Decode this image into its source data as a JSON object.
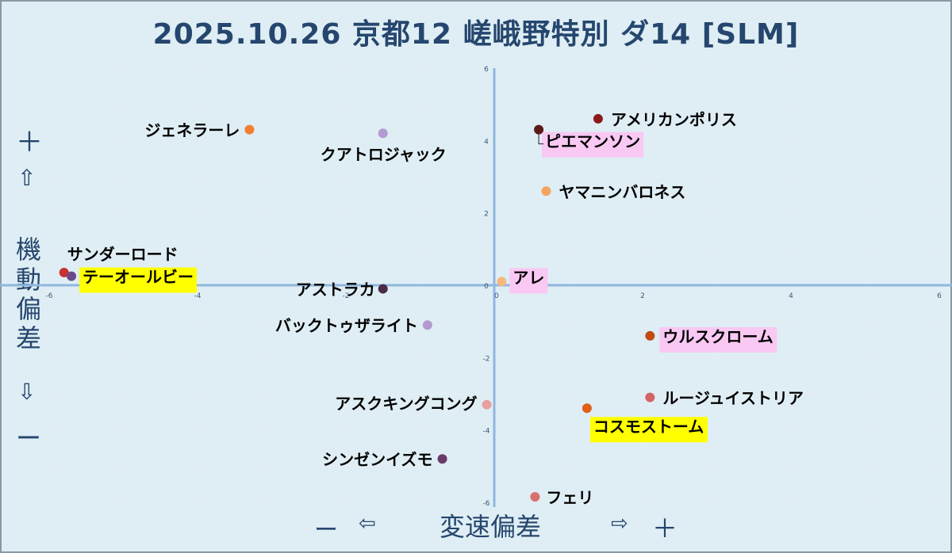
{
  "title": "2025.10.26 京都12 嵯峨野特別 ダ14 [SLM]",
  "y_axis_label": {
    "plus": "＋",
    "up_arrow": "⇧",
    "chars": [
      "機",
      "動",
      "偏",
      "差"
    ],
    "down_arrow": "⇩",
    "minus": "ー"
  },
  "x_axis_label": {
    "minus": "ー",
    "left_arrow": "⇦",
    "text": "変速偏差",
    "right_arrow": "⇨",
    "plus": "＋"
  },
  "colors": {
    "axis": "#8fb7de",
    "grid": "#e5eef4",
    "highlight_pink": "#f9c8f3",
    "highlight_yellow": "#ffff00",
    "text": "#000000",
    "title": "#25466e"
  },
  "chart_data": {
    "type": "scatter",
    "xlim": [
      -6,
      6
    ],
    "ylim": [
      -6,
      6
    ],
    "x_ticks": [
      -6,
      -4,
      -2,
      0,
      2,
      4,
      6
    ],
    "y_ticks": [
      -6,
      -4,
      -2,
      0,
      2,
      4,
      6
    ],
    "grid": true,
    "points": [
      {
        "label": "アメリカンポリス",
        "x": 1.4,
        "y": 4.6,
        "color": "#8b1a1a",
        "highlight": "none"
      },
      {
        "label": "ピエマンソン",
        "x": 0.6,
        "y": 4.3,
        "color": "#5a1a1a",
        "highlight": "pink"
      },
      {
        "label": "ヤマニンバロネス",
        "x": 0.7,
        "y": 2.6,
        "color": "#f4a460",
        "highlight": "none"
      },
      {
        "label": "ジェネラーレ",
        "x": -3.3,
        "y": 4.3,
        "color": "#f08030",
        "highlight": "none"
      },
      {
        "label": "クアトロジャック",
        "x": -1.5,
        "y": 4.2,
        "color": "#b39ad0",
        "highlight": "none"
      },
      {
        "label": "サンダーロード",
        "x": -5.8,
        "y": 0.35,
        "color": "#c83232",
        "highlight": "none"
      },
      {
        "label": "テーオールビー",
        "x": -5.7,
        "y": 0.25,
        "color": "#6a4a8a",
        "highlight": "yellow"
      },
      {
        "label": "アストラカ",
        "x": -1.5,
        "y": -0.1,
        "color": "#4a2a4a",
        "highlight": "none"
      },
      {
        "label": "アレ",
        "x": 0.1,
        "y": 0.1,
        "color": "#f4b880",
        "highlight": "pink"
      },
      {
        "label": "バックトゥザライト",
        "x": -0.9,
        "y": -1.1,
        "color": "#b39ad0",
        "highlight": "none"
      },
      {
        "label": "ウルスクローム",
        "x": 2.1,
        "y": -1.4,
        "color": "#c04a10",
        "highlight": "pink"
      },
      {
        "label": "ルージュイストリア",
        "x": 2.1,
        "y": -3.1,
        "color": "#d26464",
        "highlight": "none"
      },
      {
        "label": "アスクキングコング",
        "x": -0.1,
        "y": -3.3,
        "color": "#e8a0a0",
        "highlight": "none"
      },
      {
        "label": "コスモストーム",
        "x": 1.25,
        "y": -3.4,
        "color": "#e0601a",
        "highlight": "yellow"
      },
      {
        "label": "シンゼンイズモ",
        "x": -0.7,
        "y": -4.8,
        "color": "#6a3a6a",
        "highlight": "none"
      },
      {
        "label": "フェリ",
        "x": 0.55,
        "y": -5.85,
        "color": "#d87070",
        "highlight": "none"
      }
    ]
  }
}
